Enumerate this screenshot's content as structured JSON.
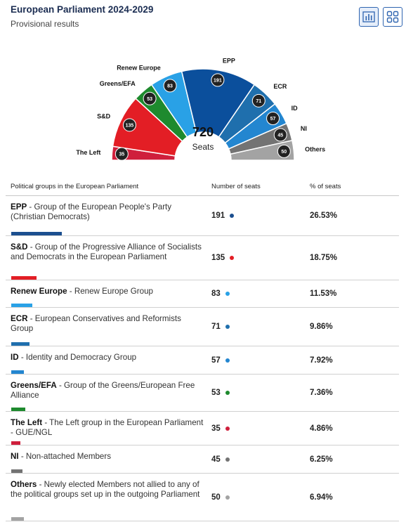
{
  "header": {
    "title": "European Parliament 2024-2029",
    "subtitle": "Provisional results"
  },
  "toolbar": {
    "chart_view_icon": "bar-chart-icon",
    "grid_view_icon": "grid-view-icon"
  },
  "chart_data": {
    "type": "pie",
    "subtype": "parliament-hemicycle",
    "total_seats": "720",
    "center_label": "Seats",
    "groups": [
      {
        "name": "The Left",
        "seats": 35,
        "color": "#cf1f3c"
      },
      {
        "name": "S&D",
        "seats": 135,
        "color": "#e31e25"
      },
      {
        "name": "Greens/EFA",
        "seats": 53,
        "color": "#1e8a2e"
      },
      {
        "name": "Renew Europe",
        "seats": 83,
        "color": "#29a1e6"
      },
      {
        "name": "EPP",
        "seats": 191,
        "color": "#0b4f9c"
      },
      {
        "name": "ECR",
        "seats": 71,
        "color": "#1f6fad"
      },
      {
        "name": "ID",
        "seats": 57,
        "color": "#2386d0"
      },
      {
        "name": "NI",
        "seats": 45,
        "color": "#737373"
      },
      {
        "name": "Others",
        "seats": 50,
        "color": "#a3a3a3"
      }
    ]
  },
  "table": {
    "headers": [
      "Political groups in the European Parliament",
      "Number of seats",
      "% of seats"
    ],
    "rows": [
      {
        "abbr": "EPP",
        "desc": " - Group of the European People's Party (Christian Democrats)",
        "seats": "191",
        "pct": "26.53%",
        "color": "#1b4f8f"
      },
      {
        "abbr": "S&D",
        "desc": " - Group of the Progressive Alliance of Socialists and Democrats in the European Parliament",
        "seats": "135",
        "pct": "18.75%",
        "color": "#e31e25"
      },
      {
        "abbr": "Renew Europe",
        "desc": " - Renew Europe Group",
        "seats": "83",
        "pct": "11.53%",
        "color": "#29a1e6"
      },
      {
        "abbr": "ECR",
        "desc": " - European Conservatives and Reformists Group",
        "seats": "71",
        "pct": "9.86%",
        "color": "#1f6fad"
      },
      {
        "abbr": "ID",
        "desc": " - Identity and Democracy Group",
        "seats": "57",
        "pct": "7.92%",
        "color": "#2386d0"
      },
      {
        "abbr": "Greens/EFA",
        "desc": " - Group of the Greens/European Free Alliance",
        "seats": "53",
        "pct": "7.36%",
        "color": "#1e8a2e"
      },
      {
        "abbr": "The Left",
        "desc": " - The Left group in the European Parliament - GUE/NGL",
        "seats": "35",
        "pct": "4.86%",
        "color": "#cf1f3c"
      },
      {
        "abbr": "NI",
        "desc": " - Non-attached Members",
        "seats": "45",
        "pct": "6.25%",
        "color": "#737373"
      },
      {
        "abbr": "Others",
        "desc": " - Newly elected Members not allied to any of the political groups set up in the outgoing Parliament",
        "seats": "50",
        "pct": "6.94%",
        "color": "#a3a3a3"
      }
    ]
  }
}
